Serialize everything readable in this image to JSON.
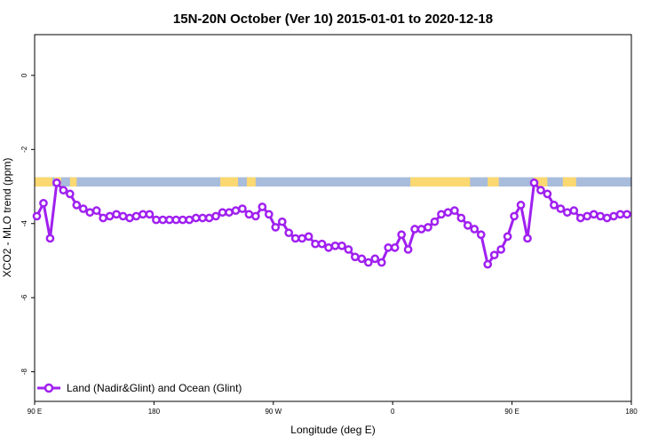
{
  "chart_data": {
    "type": "line",
    "title": "15N-20N October (Ver 10)   2015-01-01 to 2020-12-18",
    "xlabel": "Longitude (deg E)",
    "ylabel": "XCO2 - MLO trend (ppm)",
    "xlim": [
      -90,
      180
    ],
    "ylim": [
      -8.8,
      1.1
    ],
    "x_ticks": [
      {
        "value": -90,
        "label": "90 E"
      },
      {
        "value": -36,
        "label": "180"
      },
      {
        "value": 18,
        "label": "90 W"
      },
      {
        "value": 72,
        "label": "0"
      },
      {
        "value": 126,
        "label": "90 E"
      },
      {
        "value": 180,
        "label": "180"
      }
    ],
    "y_ticks": [
      {
        "value": 0,
        "label": "0"
      },
      {
        "value": -2,
        "label": "-2"
      },
      {
        "value": -4,
        "label": "-4"
      },
      {
        "value": -6,
        "label": "-6"
      },
      {
        "value": -8,
        "label": "-8"
      }
    ],
    "land_mask": {
      "ocean_color": "#a8bcdc",
      "land_color": "#fbd870",
      "y_range": [
        -3.0,
        -2.75
      ],
      "land_segments": [
        [
          -90,
          -82
        ],
        [
          -81,
          -78
        ],
        [
          -74,
          -71
        ],
        [
          -6,
          2
        ],
        [
          6,
          10
        ],
        [
          80,
          107
        ],
        [
          115,
          120
        ],
        [
          136,
          142
        ],
        [
          149,
          155
        ]
      ]
    },
    "series": [
      {
        "name": "Land (Nadir&Glint) and Ocean (Glint)",
        "color": "#a020f0",
        "x": [
          -89,
          -86,
          -83,
          -80,
          -77,
          -74,
          -71,
          -68,
          -65,
          -62,
          -59,
          -56,
          -53,
          -50,
          -47,
          -44,
          -41,
          -38,
          -35,
          -32,
          -29,
          -26,
          -23,
          -20,
          -17,
          -14,
          -11,
          -8,
          -5,
          -2,
          1,
          4,
          7,
          10,
          13,
          16,
          19,
          22,
          25,
          28,
          31,
          34,
          37,
          40,
          43,
          46,
          49,
          52,
          55,
          58,
          61,
          64,
          67,
          70,
          73,
          76,
          79,
          82,
          85,
          88,
          91,
          94,
          97,
          100,
          103,
          106,
          109,
          112,
          115,
          118,
          121,
          124,
          127,
          130,
          133,
          136,
          139,
          142,
          145,
          148,
          151,
          154,
          157,
          160,
          163,
          166,
          169,
          172,
          175,
          178
        ],
        "y": [
          -3.8,
          -3.45,
          -4.4,
          -2.9,
          -3.1,
          -3.2,
          -3.5,
          -3.6,
          -3.7,
          -3.65,
          -3.85,
          -3.8,
          -3.75,
          -3.8,
          -3.85,
          -3.8,
          -3.75,
          -3.75,
          -3.9,
          -3.9,
          -3.9,
          -3.9,
          -3.9,
          -3.9,
          -3.85,
          -3.85,
          -3.85,
          -3.8,
          -3.7,
          -3.7,
          -3.65,
          -3.6,
          -3.75,
          -3.8,
          -3.55,
          -3.75,
          -4.1,
          -3.95,
          -4.25,
          -4.4,
          -4.4,
          -4.35,
          -4.55,
          -4.55,
          -4.65,
          -4.6,
          -4.6,
          -4.7,
          -4.9,
          -4.95,
          -5.05,
          -4.95,
          -5.05,
          -4.65,
          -4.65,
          -4.3,
          -4.7,
          -4.15,
          -4.15,
          -4.1,
          -3.95,
          -3.75,
          -3.7,
          -3.65,
          -3.85,
          -4.05,
          -4.15,
          -4.3,
          -5.1,
          -4.85,
          -4.7,
          -4.35,
          -3.8,
          -3.5,
          -4.4,
          -2.9,
          -3.1,
          -3.2,
          -3.5,
          -3.6,
          -3.7,
          -3.65,
          -3.85,
          -3.8,
          -3.75,
          -3.8,
          -3.85,
          -3.8,
          -3.75,
          -3.75
        ]
      }
    ],
    "legend": {
      "position": "bottom-left",
      "label": "Land (Nadir&Glint) and Ocean (Glint)"
    },
    "grid": false
  }
}
